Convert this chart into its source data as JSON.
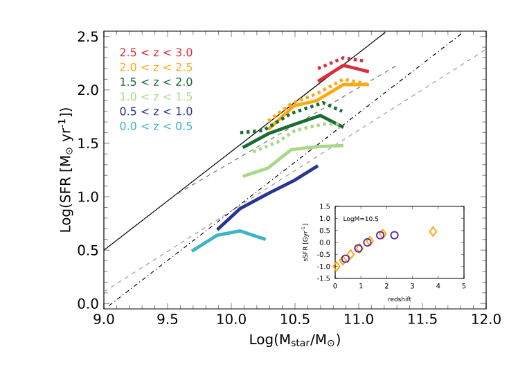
{
  "chart_data": [
    {
      "type": "line",
      "xlabel": "Log(M$_{star}$/M$_{⊙}$)",
      "ylabel": "Log(SFR [M$_{⊙}$ yr$^{-1}$])",
      "xlim": [
        9,
        12
      ],
      "ylim": [
        -0.05,
        2.55
      ],
      "xticks": [
        {
          "value": 9,
          "label": "9.0"
        },
        {
          "value": 9.5,
          "label": "9.5"
        },
        {
          "value": 10,
          "label": "10.0"
        },
        {
          "value": 10.5,
          "label": "10.5"
        },
        {
          "value": 11,
          "label": "11.0"
        },
        {
          "value": 11.5,
          "label": "11.5"
        },
        {
          "value": 12,
          "label": "12.0"
        }
      ],
      "yticks": [
        {
          "value": 0,
          "label": "0.0"
        },
        {
          "value": 0.5,
          "label": "0.5"
        },
        {
          "value": 1,
          "label": "1.0"
        },
        {
          "value": 1.5,
          "label": "1.5"
        },
        {
          "value": 2,
          "label": "2.0"
        },
        {
          "value": 2.5,
          "label": "2.5"
        }
      ],
      "legend": "top left",
      "series": [
        {
          "color": "#000000",
          "line_style": "solid",
          "x": [
            9.0,
            11.21
          ],
          "values": [
            0.5,
            2.54
          ]
        },
        {
          "color": "#707070",
          "line_style": "dashed",
          "x": [
            9.58,
            11.3
          ],
          "values": [
            1.03,
            2.23
          ]
        },
        {
          "color": "#000000",
          "line_style": "dashdot",
          "x": [
            9.04,
            11.81
          ],
          "values": [
            -0.02,
            2.53
          ]
        },
        {
          "color": "#999999",
          "line_style": "dashed",
          "x": [
            9.0,
            12.0
          ],
          "values": [
            0.11,
            2.38
          ]
        },
        {
          "name": "2.5 < z < 3.0",
          "color": "#d9303e",
          "line_style": "solid",
          "x": [
            10.68,
            10.88,
            11.08
          ],
          "values": [
            2.08,
            2.23,
            2.17
          ]
        },
        {
          "color": "#d9303e",
          "line_style": "dotted",
          "x": [
            10.68,
            10.88,
            11.05
          ],
          "values": [
            2.2,
            2.3,
            2.27
          ]
        },
        {
          "name": "2.0 < z < 2.5",
          "color": "#ffa812",
          "line_style": "solid",
          "x": [
            10.29,
            10.49,
            10.67,
            10.88,
            11.08
          ],
          "values": [
            1.63,
            1.85,
            1.9,
            2.05,
            2.05
          ]
        },
        {
          "color": "#ffa812",
          "line_style": "dotted",
          "x": [
            10.29,
            10.47,
            10.68,
            10.88,
            11.05
          ],
          "values": [
            1.71,
            1.87,
            1.97,
            2.1,
            2.06
          ]
        },
        {
          "name": "1.5 < z < 2.0",
          "color": "#1b6b35",
          "line_style": "solid",
          "x": [
            10.09,
            10.29,
            10.5,
            10.7,
            10.88
          ],
          "values": [
            1.46,
            1.59,
            1.68,
            1.76,
            1.65
          ]
        },
        {
          "color": "#1b6b35",
          "line_style": "dotted",
          "x": [
            10.07,
            10.25,
            10.47,
            10.72,
            10.87
          ],
          "values": [
            1.6,
            1.62,
            1.78,
            1.88,
            1.8
          ]
        },
        {
          "name": "1.0 < z < 1.5",
          "color": "#a8d888",
          "line_style": "solid",
          "x": [
            10.09,
            10.29,
            10.47,
            10.68,
            10.88
          ],
          "values": [
            1.19,
            1.27,
            1.44,
            1.47,
            1.48
          ]
        },
        {
          "color": "#a8d888",
          "line_style": "dotted",
          "x": [
            10.17,
            10.36,
            10.5,
            10.72,
            10.87
          ],
          "values": [
            1.42,
            1.51,
            1.62,
            1.68,
            1.68
          ]
        },
        {
          "name": "0.5 < z < 1.0",
          "color": "#2a3590",
          "line_style": "solid",
          "x": [
            9.89,
            10.07,
            10.29,
            10.49,
            10.68
          ],
          "values": [
            0.69,
            0.89,
            1.03,
            1.15,
            1.29
          ]
        },
        {
          "name": "0.0 < z < 0.5",
          "color": "#3cb4c8",
          "line_style": "solid",
          "x": [
            9.69,
            9.89,
            10.07,
            10.27
          ],
          "values": [
            0.49,
            0.64,
            0.68,
            0.6
          ]
        }
      ]
    },
    {
      "type": "scatter",
      "xlabel": "redshift",
      "ylabel": "sSFR [Gyr$^{-1}$]",
      "annotations": [
        "LogM=10.5"
      ],
      "xlim": [
        0,
        5
      ],
      "ylim": [
        -1.5,
        1.5
      ],
      "xticks": [
        0,
        1,
        2,
        3,
        4,
        5
      ],
      "yticks": [
        {
          "value": -1.5,
          "label": "-1.5"
        },
        {
          "value": -1,
          "label": "-1.0"
        },
        {
          "value": -0.5,
          "label": "-0.5"
        },
        {
          "value": 0,
          "label": "0.0"
        },
        {
          "value": 0.5,
          "label": "0.5"
        },
        {
          "value": 1,
          "label": "1.0"
        },
        {
          "value": 1.5,
          "label": "1.5"
        }
      ],
      "series": [
        {
          "color": "#ffa812",
          "marker": "diamond",
          "x": [
            0.05,
            0.3,
            0.6,
            0.95,
            1.35,
            1.85,
            3.8
          ],
          "values": [
            -1.0,
            -0.75,
            -0.5,
            -0.25,
            0.05,
            0.35,
            0.45
          ]
        },
        {
          "color": "#5b2ca0",
          "marker": "circle",
          "x": [
            0.4,
            0.9,
            1.25,
            1.75,
            2.3
          ],
          "values": [
            -0.68,
            -0.25,
            0.0,
            0.3,
            0.3
          ]
        }
      ]
    }
  ]
}
